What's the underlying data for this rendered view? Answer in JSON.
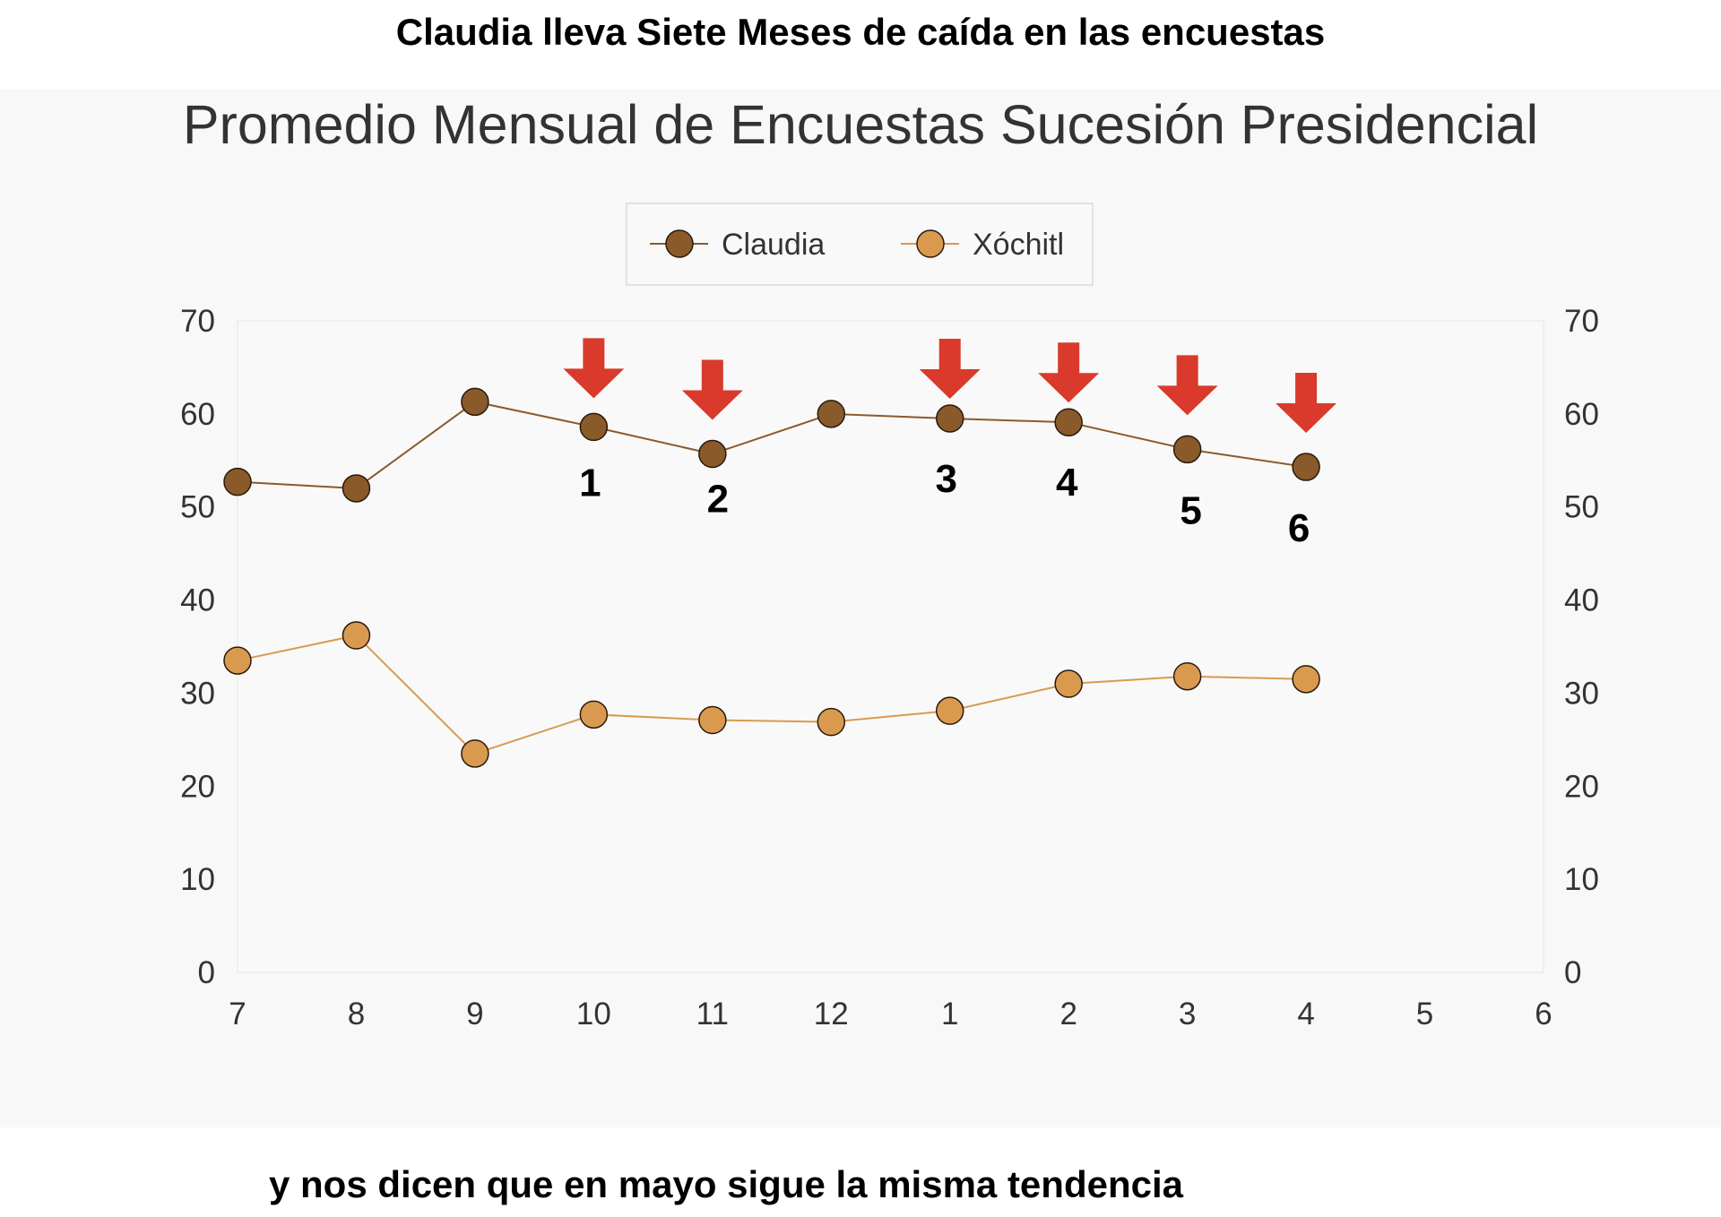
{
  "header": {
    "text": "Claudia lleva Siete Meses de caída en las encuestas"
  },
  "footer": {
    "text": "y nos dicen que en mayo sigue la misma tendencia"
  },
  "colors": {
    "claudia": "#8a5a2b",
    "xochitl": "#d99a50",
    "arrow": "#d93a2b",
    "panel": "#f8f8f8",
    "plot": "#f9f9f9"
  },
  "chart_data": {
    "type": "line",
    "title": "Promedio Mensual de Encuestas Sucesión Presidencial",
    "categories": [
      "7",
      "8",
      "9",
      "10",
      "11",
      "12",
      "1",
      "2",
      "3",
      "4",
      "5",
      "6"
    ],
    "ylim": [
      0,
      70
    ],
    "yticks": [
      "0",
      "10",
      "20",
      "30",
      "40",
      "50",
      "60",
      "70"
    ],
    "y2ticks": [
      "0",
      "10",
      "20",
      "30",
      "40",
      "50",
      "60",
      "70"
    ],
    "grid": false,
    "legend": "top-center",
    "series": [
      {
        "name": "Claudia",
        "values": [
          52.7,
          52.0,
          61.3,
          58.6,
          55.7,
          60.0,
          59.5,
          59.1,
          56.2,
          54.3,
          null,
          null
        ]
      },
      {
        "name": "Xóchitl",
        "values": [
          33.5,
          36.2,
          23.5,
          27.7,
          27.1,
          26.9,
          28.1,
          31.0,
          31.8,
          31.5,
          null,
          null
        ]
      }
    ],
    "annotations": {
      "arrow_categories": [
        "10",
        "11",
        "1",
        "2",
        "3",
        "4"
      ],
      "count_labels": [
        "1",
        "2",
        "3",
        "4",
        "5",
        "6"
      ]
    }
  }
}
